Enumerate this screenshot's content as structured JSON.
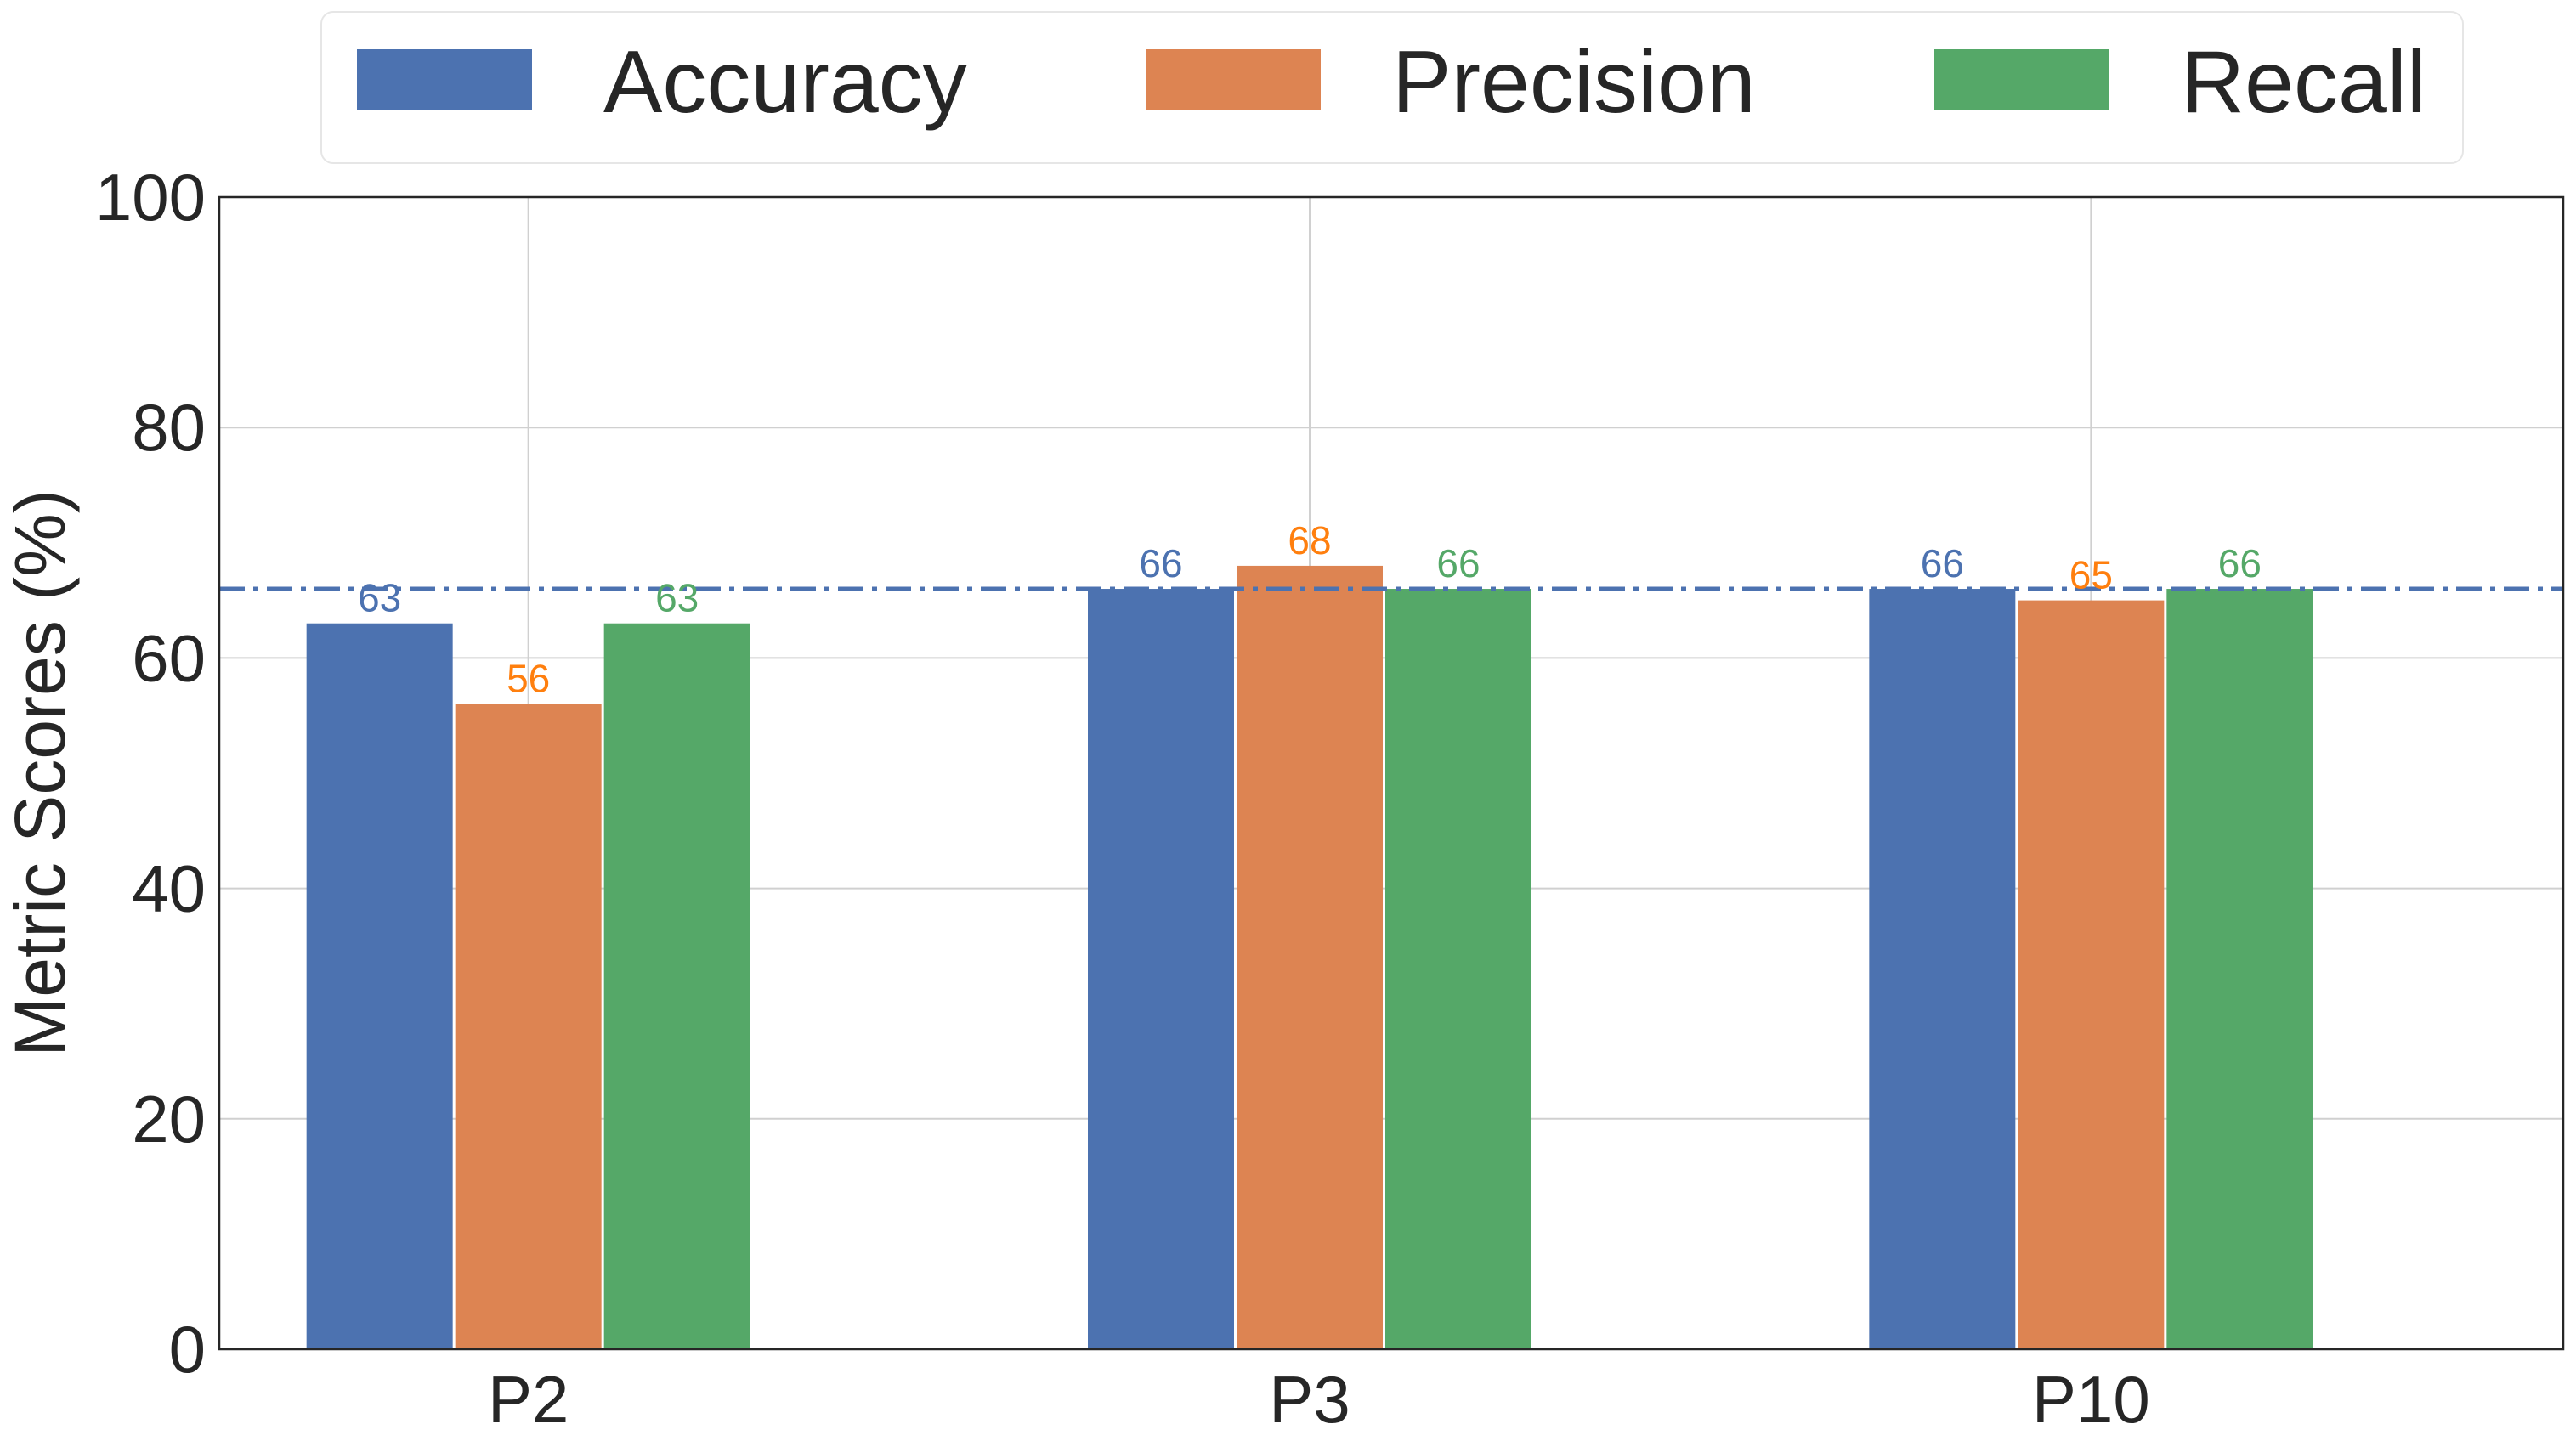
{
  "chart_data": {
    "type": "bar",
    "categories": [
      "P2",
      "P3",
      "P10"
    ],
    "series": [
      {
        "name": "Accuracy",
        "values": [
          63,
          66,
          66
        ],
        "color": "#4c72b0",
        "label_color": "#4c72b0"
      },
      {
        "name": "Precision",
        "values": [
          56,
          68,
          65
        ],
        "color": "#dd8452",
        "label_color": "#ff7f0e"
      },
      {
        "name": "Recall",
        "values": [
          63,
          66,
          66
        ],
        "color": "#55a868",
        "label_color": "#55a868"
      }
    ],
    "xlabel": "",
    "ylabel": "Metric Scores (%)",
    "ylim": [
      0,
      100
    ],
    "yticks": [
      0,
      20,
      40,
      60,
      80,
      100
    ],
    "reference_line": {
      "y": 66,
      "style": "dash-dot",
      "color": "#4c72b0"
    },
    "grid": true,
    "legend_position": "top-center"
  }
}
